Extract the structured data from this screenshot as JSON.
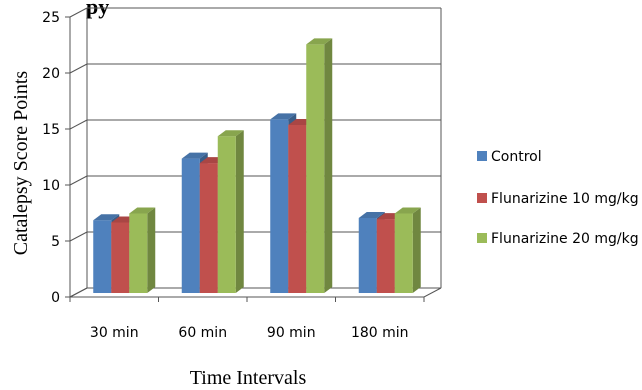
{
  "chart_data": {
    "type": "bar",
    "title": "py",
    "xlabel": "Time Intervals",
    "ylabel": "Catalepsy Score Points",
    "categories": [
      "30 min",
      "60 min",
      "90 min",
      "180 min"
    ],
    "series": [
      {
        "name": "Control",
        "values": [
          6.5,
          12,
          15.5,
          6.7
        ],
        "color": "#4F81BD"
      },
      {
        "name": "Flunarizine 10 mg/kg",
        "values": [
          6.3,
          11.6,
          15,
          6.6
        ],
        "color": "#C0504D"
      },
      {
        "name": "Flunarizine 20 mg/kg",
        "values": [
          7.1,
          14,
          22.2,
          7.1
        ],
        "color": "#9BBB59"
      }
    ],
    "yticks": [
      "0",
      "5",
      "10",
      "15",
      "20",
      "25"
    ],
    "ylim": [
      0,
      25
    ],
    "grid": true,
    "legend": "right",
    "style": "3d-clustered-column"
  }
}
